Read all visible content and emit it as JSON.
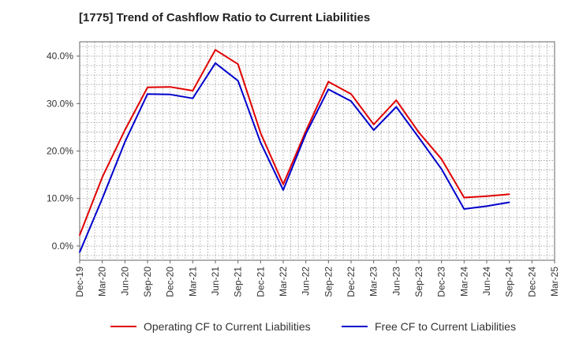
{
  "chart_data": {
    "type": "line",
    "title": "[1775]  Trend of Cashflow Ratio to Current Liabilities",
    "xlabel": "",
    "ylabel": "",
    "x_ticks": [
      "Dec-19",
      "Mar-20",
      "Jun-20",
      "Sep-20",
      "Dec-20",
      "Mar-21",
      "Jun-21",
      "Sep-21",
      "Dec-21",
      "Mar-22",
      "Jun-22",
      "Sep-22",
      "Dec-22",
      "Mar-23",
      "Jun-23",
      "Sep-23",
      "Dec-23",
      "Mar-24",
      "Jun-24",
      "Sep-24",
      "Dec-24",
      "Mar-25"
    ],
    "y_ticks": [
      "0.0%",
      "10.0%",
      "20.0%",
      "30.0%",
      "40.0%"
    ],
    "ylim": [
      -3,
      43
    ],
    "grid": true,
    "legend_position": "bottom",
    "series": [
      {
        "name": "Operating CF to Current Liabilities",
        "color": "#e00000",
        "x": [
          "Dec-19",
          "Mar-20",
          "Jun-20",
          "Sep-20",
          "Dec-20",
          "Mar-21",
          "Jun-21",
          "Sep-21",
          "Dec-21",
          "Mar-22",
          "Jun-22",
          "Sep-22",
          "Dec-22",
          "Mar-23",
          "Jun-23",
          "Sep-23",
          "Dec-23",
          "Mar-24",
          "Jun-24",
          "Sep-24"
        ],
        "values": [
          2.3,
          14.5,
          24.4,
          33.4,
          33.5,
          32.7,
          41.3,
          38.3,
          23.8,
          13.0,
          24.2,
          34.6,
          32.0,
          25.6,
          30.7,
          23.9,
          18.3,
          10.2,
          10.5,
          10.9
        ]
      },
      {
        "name": "Free CF to Current Liabilities",
        "color": "#0000cc",
        "x": [
          "Dec-19",
          "Mar-20",
          "Jun-20",
          "Sep-20",
          "Dec-20",
          "Mar-21",
          "Jun-21",
          "Sep-21",
          "Dec-21",
          "Mar-22",
          "Jun-22",
          "Sep-22",
          "Dec-22",
          "Mar-23",
          "Jun-23",
          "Sep-23",
          "Dec-23",
          "Mar-24",
          "Jun-24",
          "Sep-24"
        ],
        "values": [
          -1.3,
          10.0,
          21.9,
          32.0,
          31.9,
          31.1,
          38.5,
          34.8,
          21.8,
          11.8,
          23.6,
          33.0,
          30.5,
          24.4,
          29.3,
          22.8,
          16.2,
          7.8,
          8.4,
          9.2
        ]
      }
    ]
  }
}
